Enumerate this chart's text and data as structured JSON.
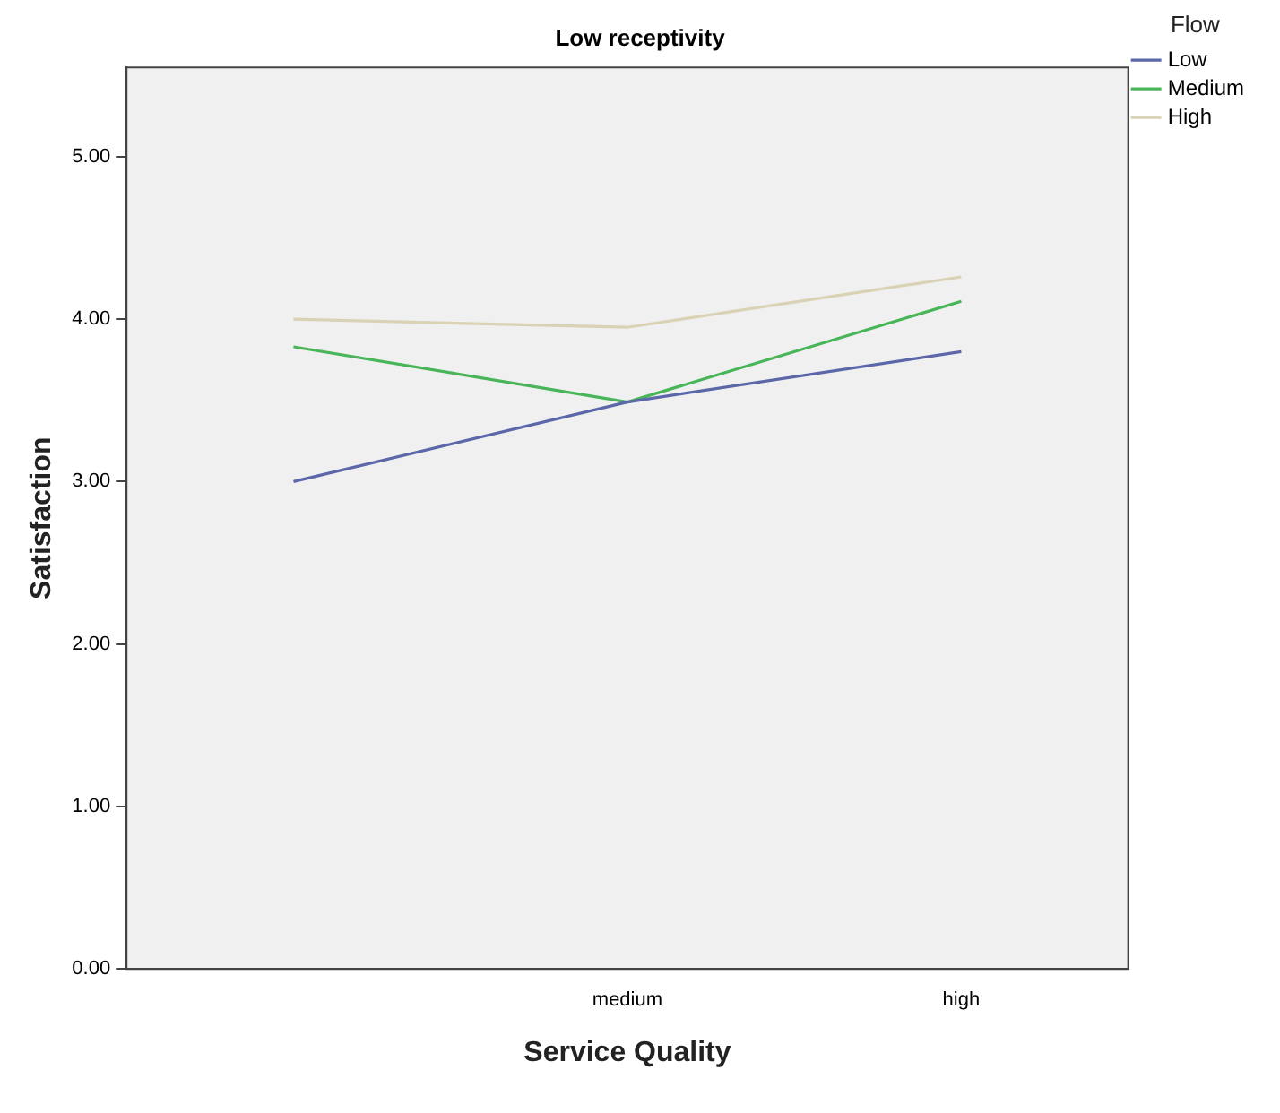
{
  "chart_data": {
    "type": "line",
    "title": "Low receptivity",
    "xlabel": "Service Quality",
    "ylabel": "Satisfaction",
    "legend_title": "Flow",
    "categories": [
      null,
      "medium",
      "high"
    ],
    "series": [
      {
        "name": "Low",
        "color": "#5b67a8",
        "values": [
          3.0,
          3.49,
          3.8
        ]
      },
      {
        "name": "Medium",
        "color": "#47b558",
        "values": [
          3.83,
          3.49,
          4.11
        ]
      },
      {
        "name": "High",
        "color": "#d9d2b4",
        "values": [
          4.0,
          3.95,
          4.26
        ]
      }
    ],
    "ylim": [
      0,
      5.55
    ],
    "yticks": [
      {
        "value": 0,
        "label": "0.00"
      },
      {
        "value": 1,
        "label": "1.00"
      },
      {
        "value": 2,
        "label": "2.00"
      },
      {
        "value": 3,
        "label": "3.00"
      },
      {
        "value": 4,
        "label": "4.00"
      },
      {
        "value": 5,
        "label": "5.00"
      }
    ],
    "grid": false,
    "legend": "top right",
    "marker": "none",
    "line_style": "solid"
  }
}
